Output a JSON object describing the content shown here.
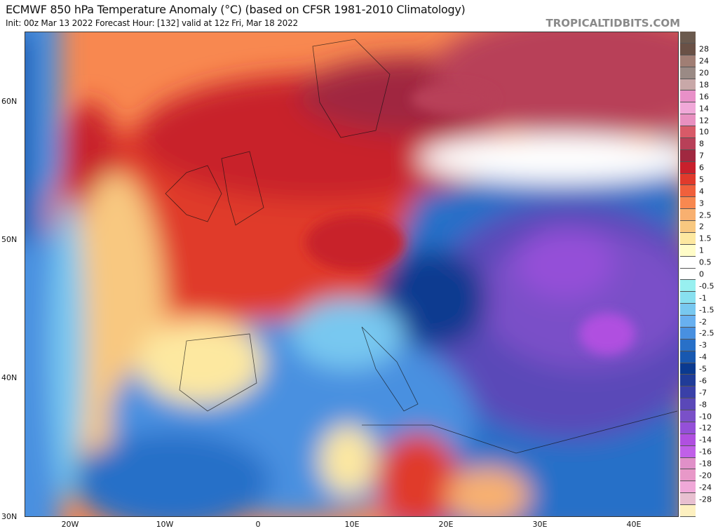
{
  "header": {
    "title": "ECMWF 850 hPa Temperature Anomaly (°C) (based on CFSR 1981-2010 Climatology)",
    "subtitle": "Init: 00z Mar 13 2022   Forecast Hour: [132]   valid at 12z Fri, Mar 18 2022",
    "brand": "TROPICALTIDBITS.COM"
  },
  "axes": {
    "lat_labels": [
      "60N",
      "50N",
      "40N",
      "30N"
    ],
    "lon_labels": [
      "20W",
      "10W",
      "0",
      "10E",
      "20E",
      "30E",
      "40E"
    ]
  },
  "colorbar": {
    "labels": [
      "28",
      "24",
      "20",
      "18",
      "16",
      "14",
      "12",
      "10",
      "8",
      "7",
      "6",
      "5",
      "4",
      "3",
      "2.5",
      "2",
      "1.5",
      "1",
      "0.5",
      "0",
      "-0.5",
      "-1",
      "-1.5",
      "-2",
      "-2.5",
      "-3",
      "-4",
      "-5",
      "-6",
      "-7",
      "-8",
      "-10",
      "-12",
      "-14",
      "-16",
      "-18",
      "-20",
      "-24",
      "-28"
    ],
    "colors": [
      "#6b5a4e",
      "#6a5146",
      "#a07e74",
      "#9a8a85",
      "#c8a8a8",
      "#e890c8",
      "#f0a8d8",
      "#e890c0",
      "#d85a68",
      "#b84058",
      "#a02840",
      "#c8202c",
      "#e03a2c",
      "#f0603c",
      "#f88850",
      "#f8b070",
      "#f8c880",
      "#fde8a0",
      "#fffcc8",
      "#ffffff",
      "#ffffff",
      "#98f0f0",
      "#88e0f0",
      "#78c8f0",
      "#68b0f0",
      "#4890e0",
      "#2870c8",
      "#1858b0",
      "#0a3a90",
      "#203c98",
      "#3a40a8",
      "#5a48b8",
      "#7a50c8",
      "#9450d8",
      "#b050e0",
      "#c060e8",
      "#e090c8",
      "#e898c8",
      "#f0a8d8",
      "#e8c0d0",
      "#fdf0c0"
    ]
  }
}
